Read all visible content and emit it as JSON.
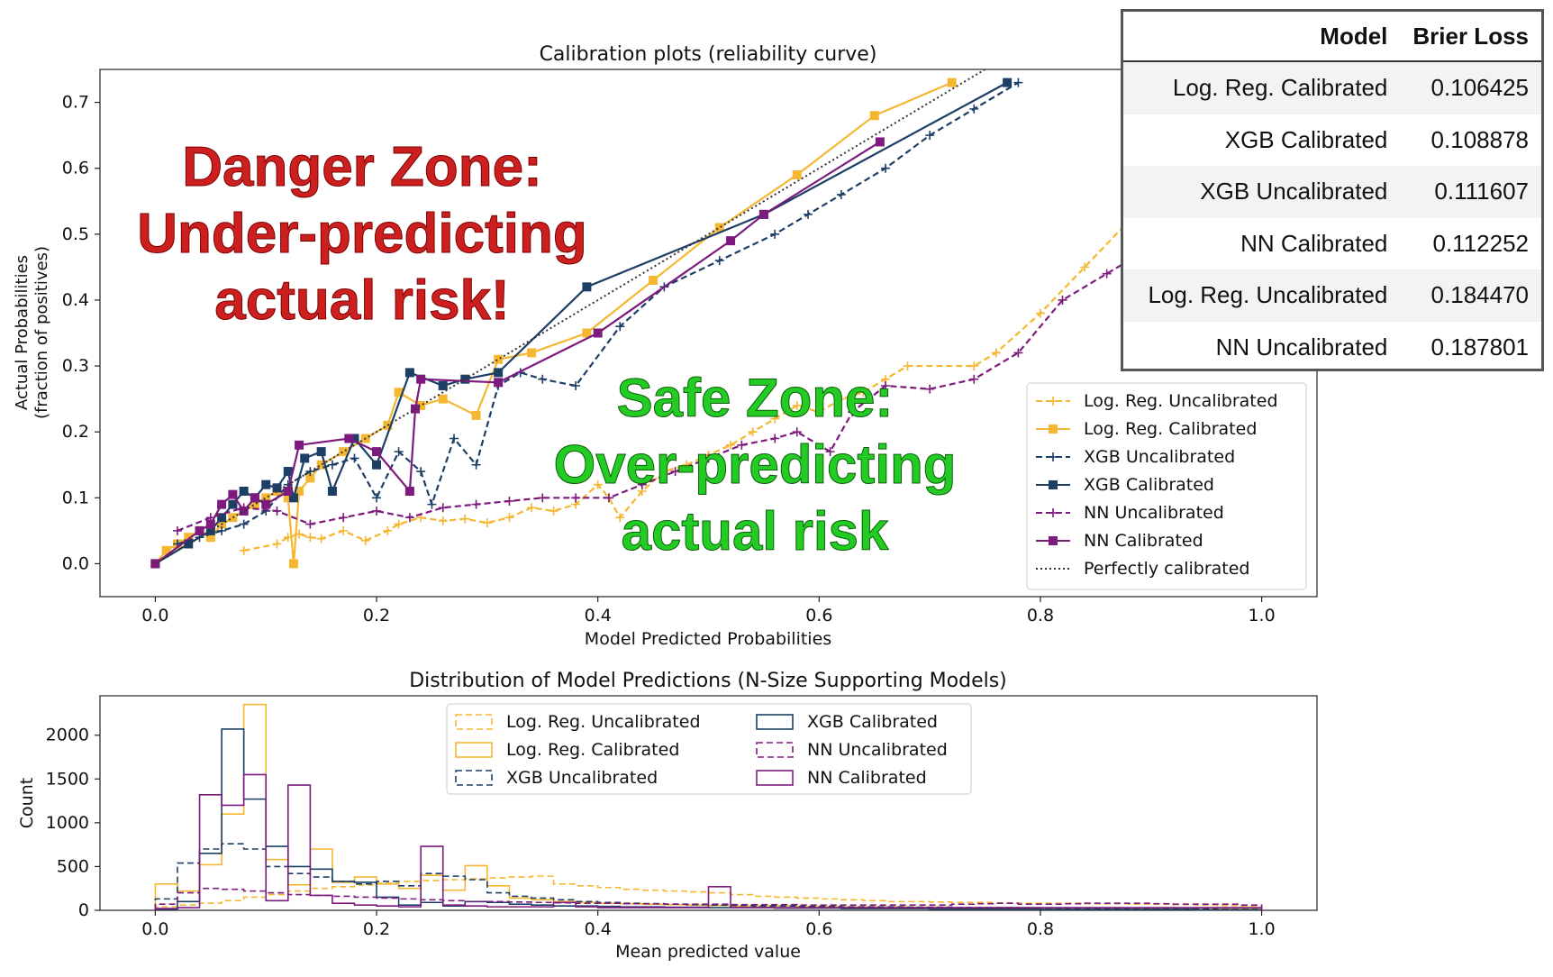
{
  "colors": {
    "logreg": "#f5b731",
    "xgb": "#1d3f66",
    "nn": "#7d1a7d",
    "perfect": "#333333",
    "danger": "#cc1f1f",
    "safe": "#22cc22"
  },
  "zones": {
    "danger": [
      "Danger Zone:",
      "Under-predicting",
      "actual risk!"
    ],
    "safe": [
      "Safe Zone:",
      "Over-predicting",
      "actual risk"
    ]
  },
  "brier_table": {
    "headers": [
      "Model",
      "Brier Loss"
    ],
    "rows": [
      [
        "Log. Reg. Calibrated",
        "0.106425"
      ],
      [
        "XGB Calibrated",
        "0.108878"
      ],
      [
        "XGB Uncalibrated",
        "0.111607"
      ],
      [
        "NN Calibrated",
        "0.112252"
      ],
      [
        "Log. Reg. Uncalibrated",
        "0.184470"
      ],
      [
        "NN Uncalibrated",
        "0.187801"
      ]
    ]
  },
  "chart_data": [
    {
      "type": "line",
      "title": "Calibration plots (reliability curve)",
      "xlabel": "Model Predicted Probabilities",
      "ylabel": [
        "Actual Probabilities",
        "(fraction of positives)"
      ],
      "xlim": [
        -0.05,
        1.05
      ],
      "ylim": [
        -0.05,
        0.75
      ],
      "xticks": [
        0.0,
        0.2,
        0.4,
        0.6,
        0.8,
        1.0
      ],
      "xtick_labels": [
        "0.0",
        "0.2",
        "0.4",
        "0.6",
        "0.8",
        "1.0"
      ],
      "yticks": [
        0.0,
        0.1,
        0.2,
        0.3,
        0.4,
        0.5,
        0.6,
        0.7
      ],
      "ytick_labels": [
        "0.0",
        "0.1",
        "0.2",
        "0.3",
        "0.4",
        "0.5",
        "0.6",
        "0.7"
      ],
      "legend_position": "lower-right",
      "series": [
        {
          "name": "Log. Reg. Uncalibrated",
          "color_key": "logreg",
          "dash": "dashed",
          "marker": "plus",
          "x": [
            0.08,
            0.11,
            0.12,
            0.13,
            0.14,
            0.15,
            0.17,
            0.19,
            0.21,
            0.22,
            0.24,
            0.26,
            0.28,
            0.3,
            0.32,
            0.34,
            0.36,
            0.38,
            0.4,
            0.41,
            0.42,
            0.44,
            0.46,
            0.48,
            0.5,
            0.52,
            0.54,
            0.56,
            0.58,
            0.6,
            0.62,
            0.64,
            0.66,
            0.68,
            0.74,
            0.76,
            0.8,
            0.84,
            0.88,
            0.91
          ],
          "y": [
            0.02,
            0.03,
            0.04,
            0.045,
            0.04,
            0.038,
            0.05,
            0.035,
            0.05,
            0.06,
            0.07,
            0.065,
            0.068,
            0.062,
            0.07,
            0.085,
            0.08,
            0.09,
            0.12,
            0.1,
            0.07,
            0.11,
            0.14,
            0.15,
            0.165,
            0.18,
            0.2,
            0.22,
            0.24,
            0.23,
            0.25,
            0.26,
            0.28,
            0.3,
            0.3,
            0.32,
            0.38,
            0.45,
            0.52,
            0.57
          ]
        },
        {
          "name": "Log. Reg. Calibrated",
          "color_key": "logreg",
          "dash": "solid",
          "marker": "square",
          "x": [
            0.0,
            0.01,
            0.02,
            0.03,
            0.04,
            0.05,
            0.06,
            0.07,
            0.08,
            0.09,
            0.1,
            0.11,
            0.12,
            0.125,
            0.13,
            0.14,
            0.15,
            0.17,
            0.19,
            0.21,
            0.22,
            0.24,
            0.26,
            0.29,
            0.31,
            0.34,
            0.39,
            0.45,
            0.51,
            0.58,
            0.65,
            0.72
          ],
          "y": [
            0.0,
            0.02,
            0.03,
            0.04,
            0.05,
            0.04,
            0.06,
            0.07,
            0.08,
            0.09,
            0.1,
            0.11,
            0.1,
            0.0,
            0.11,
            0.13,
            0.15,
            0.17,
            0.19,
            0.21,
            0.26,
            0.24,
            0.25,
            0.225,
            0.31,
            0.32,
            0.35,
            0.43,
            0.51,
            0.59,
            0.68,
            0.73
          ]
        },
        {
          "name": "XGB Uncalibrated",
          "color_key": "xgb",
          "dash": "dashed",
          "marker": "plus",
          "x": [
            0.02,
            0.04,
            0.06,
            0.08,
            0.1,
            0.12,
            0.14,
            0.16,
            0.18,
            0.2,
            0.22,
            0.24,
            0.25,
            0.27,
            0.29,
            0.31,
            0.33,
            0.35,
            0.38,
            0.42,
            0.46,
            0.51,
            0.56,
            0.59,
            0.62,
            0.66,
            0.7,
            0.74,
            0.78
          ],
          "y": [
            0.03,
            0.04,
            0.05,
            0.06,
            0.08,
            0.12,
            0.14,
            0.15,
            0.16,
            0.1,
            0.17,
            0.14,
            0.09,
            0.19,
            0.15,
            0.27,
            0.29,
            0.28,
            0.27,
            0.36,
            0.42,
            0.46,
            0.5,
            0.53,
            0.56,
            0.6,
            0.65,
            0.69,
            0.73
          ]
        },
        {
          "name": "XGB Calibrated",
          "color_key": "xgb",
          "dash": "solid",
          "marker": "square",
          "x": [
            0.0,
            0.03,
            0.05,
            0.06,
            0.07,
            0.08,
            0.09,
            0.1,
            0.11,
            0.12,
            0.125,
            0.135,
            0.15,
            0.16,
            0.18,
            0.2,
            0.23,
            0.26,
            0.28,
            0.31,
            0.39,
            0.55,
            0.77
          ],
          "y": [
            0.0,
            0.03,
            0.05,
            0.07,
            0.09,
            0.11,
            0.1,
            0.12,
            0.115,
            0.14,
            0.1,
            0.16,
            0.17,
            0.11,
            0.19,
            0.15,
            0.29,
            0.27,
            0.28,
            0.29,
            0.42,
            0.53,
            0.73
          ]
        },
        {
          "name": "NN Uncalibrated",
          "color_key": "nn",
          "dash": "dashed",
          "marker": "plus",
          "x": [
            0.02,
            0.05,
            0.08,
            0.11,
            0.14,
            0.17,
            0.2,
            0.23,
            0.26,
            0.29,
            0.32,
            0.35,
            0.38,
            0.41,
            0.44,
            0.47,
            0.5,
            0.53,
            0.56,
            0.58,
            0.61,
            0.63,
            0.66,
            0.7,
            0.74,
            0.78,
            0.82,
            0.86,
            0.92
          ],
          "y": [
            0.05,
            0.07,
            0.085,
            0.08,
            0.06,
            0.07,
            0.08,
            0.07,
            0.085,
            0.09,
            0.095,
            0.1,
            0.1,
            0.1,
            0.12,
            0.14,
            0.16,
            0.18,
            0.19,
            0.2,
            0.17,
            0.23,
            0.27,
            0.265,
            0.28,
            0.32,
            0.4,
            0.44,
            0.5
          ]
        },
        {
          "name": "NN Calibrated",
          "color_key": "nn",
          "dash": "solid",
          "marker": "square",
          "x": [
            0.0,
            0.04,
            0.05,
            0.06,
            0.07,
            0.08,
            0.09,
            0.1,
            0.12,
            0.13,
            0.175,
            0.2,
            0.23,
            0.235,
            0.24,
            0.31,
            0.4,
            0.52,
            0.55,
            0.655
          ],
          "y": [
            0.0,
            0.05,
            0.06,
            0.09,
            0.105,
            0.08,
            0.1,
            0.09,
            0.11,
            0.18,
            0.19,
            0.17,
            0.11,
            0.235,
            0.28,
            0.275,
            0.35,
            0.49,
            0.53,
            0.64
          ]
        },
        {
          "name": "Perfectly calibrated",
          "color_key": "perfect",
          "dash": "dotted",
          "marker": "none",
          "x": [
            0.0,
            1.0
          ],
          "y": [
            0.0,
            1.0
          ]
        }
      ]
    },
    {
      "type": "bar",
      "title": "Distribution of Model Predictions (N-Size Supporting Models)",
      "xlabel": "Mean predicted value",
      "ylabel": "Count",
      "xlim": [
        -0.05,
        1.05
      ],
      "ylim": [
        0,
        2450
      ],
      "xticks": [
        0.0,
        0.2,
        0.4,
        0.6,
        0.8,
        1.0
      ],
      "xtick_labels": [
        "0.0",
        "0.2",
        "0.4",
        "0.6",
        "0.8",
        "1.0"
      ],
      "yticks": [
        0,
        500,
        1000,
        1500,
        2000
      ],
      "ytick_labels": [
        "0",
        "500",
        "1000",
        "1500",
        "2000"
      ],
      "legend_position": "upper-center",
      "bin_edges": [
        0.0,
        0.02,
        0.04,
        0.06,
        0.08,
        0.1,
        0.12,
        0.14,
        0.16,
        0.18,
        0.2,
        0.22,
        0.24,
        0.26,
        0.28,
        0.3,
        0.32,
        0.34,
        0.36,
        0.38,
        0.4,
        0.42,
        0.44,
        0.46,
        0.48,
        0.5,
        0.52,
        0.54,
        0.56,
        0.58,
        0.6,
        0.62,
        0.64,
        0.66,
        0.68,
        0.7,
        0.72,
        0.74,
        0.76,
        0.78,
        0.8,
        0.82,
        0.84,
        0.86,
        0.88,
        0.9,
        0.92,
        0.94,
        0.96,
        0.98,
        1.0
      ],
      "series": [
        {
          "name": "Log. Reg. Uncalibrated",
          "color_key": "logreg",
          "dash": "dashed",
          "values": [
            40,
            60,
            80,
            110,
            150,
            180,
            220,
            250,
            270,
            290,
            310,
            330,
            340,
            350,
            360,
            370,
            380,
            390,
            300,
            280,
            260,
            240,
            230,
            220,
            210,
            200,
            180,
            160,
            150,
            140,
            130,
            120,
            110,
            100,
            100,
            95,
            90,
            90,
            85,
            80,
            80,
            80,
            75,
            75,
            70,
            70,
            65,
            60,
            55,
            50
          ]
        },
        {
          "name": "Log. Reg. Calibrated",
          "color_key": "logreg",
          "dash": "solid",
          "values": [
            300,
            220,
            520,
            1100,
            2350,
            580,
            290,
            700,
            320,
            380,
            300,
            250,
            400,
            230,
            510,
            280,
            140,
            120,
            100,
            90,
            80,
            75,
            70,
            65,
            60,
            55,
            50,
            50,
            50,
            45,
            45,
            40,
            40,
            40,
            35,
            35,
            30,
            30,
            30,
            30,
            25,
            25,
            25,
            20,
            20,
            20,
            20,
            20,
            15,
            15
          ]
        },
        {
          "name": "XGB Uncalibrated",
          "color_key": "xgb",
          "dash": "dashed",
          "values": [
            130,
            540,
            700,
            760,
            700,
            500,
            420,
            380,
            330,
            300,
            330,
            280,
            420,
            390,
            350,
            200,
            160,
            140,
            120,
            100,
            90,
            80,
            75,
            70,
            65,
            60,
            55,
            50,
            50,
            45,
            45,
            40,
            40,
            40,
            35,
            35,
            30,
            30,
            30,
            25,
            25,
            20,
            20,
            20,
            15,
            15,
            15,
            15,
            10,
            10
          ]
        },
        {
          "name": "XGB Calibrated",
          "color_key": "xgb",
          "dash": "solid",
          "values": [
            10,
            100,
            650,
            2070,
            1270,
            730,
            500,
            470,
            330,
            320,
            150,
            60,
            90,
            50,
            100,
            90,
            70,
            60,
            50,
            50,
            45,
            40,
            40,
            35,
            35,
            30,
            30,
            30,
            25,
            25,
            25,
            20,
            20,
            20,
            20,
            15,
            15,
            15,
            15,
            15,
            10,
            10,
            10,
            10,
            10,
            10,
            10,
            5,
            5,
            5
          ]
        },
        {
          "name": "NN Uncalibrated",
          "color_key": "nn",
          "dash": "dashed",
          "values": [
            70,
            200,
            250,
            240,
            220,
            200,
            180,
            170,
            160,
            150,
            140,
            130,
            120,
            110,
            100,
            100,
            95,
            90,
            85,
            80,
            80,
            75,
            75,
            70,
            70,
            70,
            65,
            65,
            65,
            60,
            60,
            60,
            60,
            60,
            60,
            60,
            70,
            75,
            80,
            70,
            70,
            75,
            80,
            80,
            80,
            75,
            70,
            70,
            70,
            60
          ]
        },
        {
          "name": "NN Calibrated",
          "color_key": "nn",
          "dash": "solid",
          "values": [
            20,
            30,
            1320,
            1200,
            1550,
            110,
            1430,
            170,
            80,
            60,
            50,
            40,
            730,
            60,
            50,
            40,
            40,
            40,
            90,
            40,
            30,
            30,
            30,
            30,
            30,
            270,
            30,
            30,
            30,
            30,
            30,
            30,
            30,
            30,
            30,
            30,
            30,
            30,
            30,
            30,
            30,
            30,
            30,
            30,
            30,
            30,
            30,
            30,
            30,
            30
          ]
        }
      ]
    }
  ]
}
